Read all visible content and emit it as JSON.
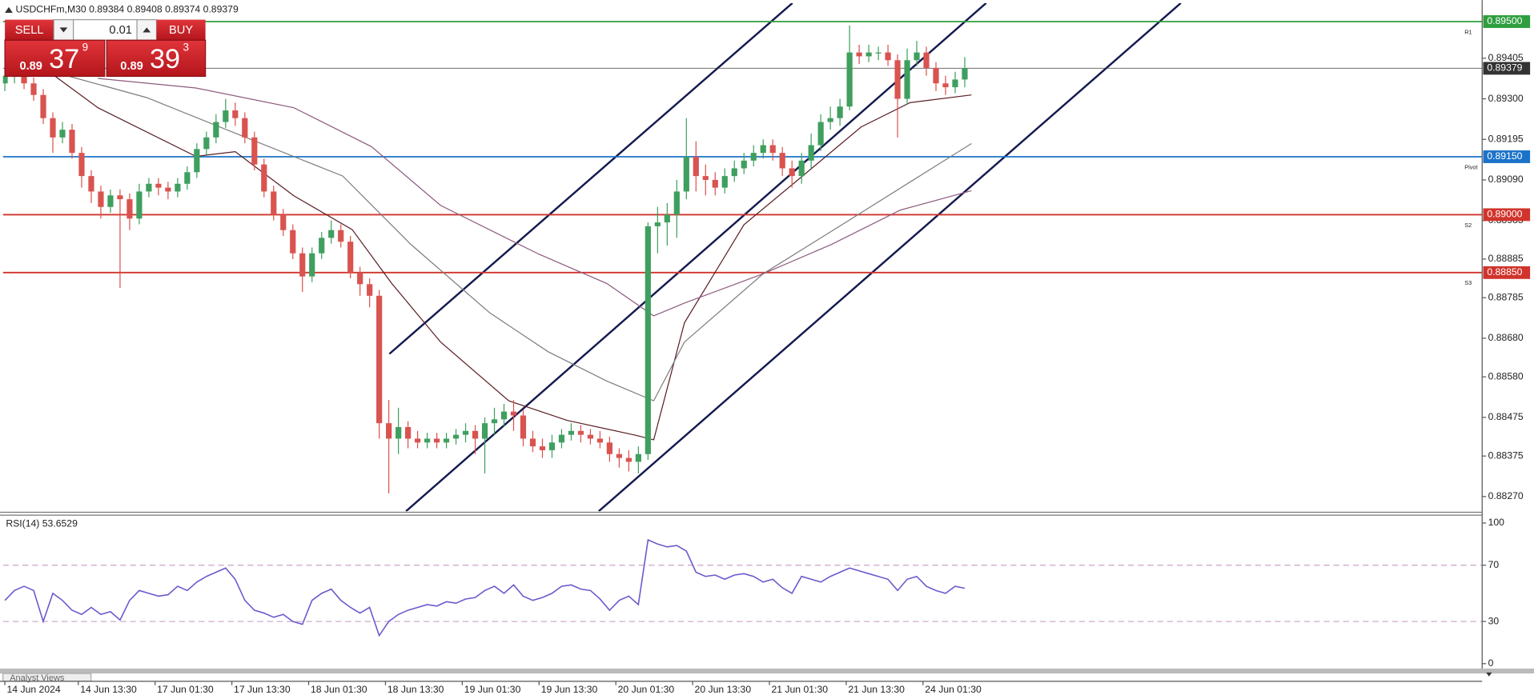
{
  "header": {
    "symbol": "USDCHFm,M30",
    "ohlc": [
      0.89384,
      0.89408,
      0.89374,
      0.89379
    ]
  },
  "trade_panel": {
    "sell": "SELL",
    "buy": "BUY",
    "volume": "0.01",
    "sell_price": {
      "big": "0.89",
      "main": "37",
      "frac": "9"
    },
    "buy_price": {
      "big": "0.89",
      "main": "39",
      "frac": "3"
    }
  },
  "footer": "Analyst Views",
  "chart_data": [
    {
      "type": "candlestick",
      "up_color": "#3f9f5f",
      "down_color": "#d9534f",
      "x": [
        0,
        1,
        2,
        3,
        4,
        5,
        6,
        7,
        8,
        9,
        10,
        11,
        12,
        13,
        14,
        15,
        16,
        17,
        18,
        19,
        20,
        21,
        22,
        23,
        24,
        25,
        26,
        27,
        28,
        29,
        30,
        31,
        32,
        33,
        34,
        35,
        36,
        37,
        38,
        39,
        40,
        41,
        42,
        43,
        44,
        45,
        46,
        47,
        48,
        49,
        50,
        51,
        52,
        53,
        54,
        55,
        56,
        57,
        58,
        59,
        60,
        61,
        62,
        63,
        64,
        65,
        66,
        67,
        68,
        69,
        70,
        71,
        72,
        73,
        74,
        75,
        76,
        77,
        78,
        79,
        80,
        81,
        82,
        83,
        84,
        85,
        86,
        87,
        88,
        89,
        90,
        91,
        92,
        93,
        94,
        95,
        96,
        97,
        98,
        99,
        100
      ],
      "open": [
        0.8934,
        0.8936,
        0.89372,
        0.8934,
        0.8931,
        0.8925,
        0.892,
        0.8922,
        0.8916,
        0.891,
        0.8906,
        0.8902,
        0.8905,
        0.8904,
        0.8899,
        0.8906,
        0.8908,
        0.8907,
        0.8906,
        0.8908,
        0.8911,
        0.8917,
        0.892,
        0.8924,
        0.8927,
        0.8925,
        0.892,
        0.8913,
        0.8906,
        0.89,
        0.8896,
        0.889,
        0.8884,
        0.889,
        0.8894,
        0.8896,
        0.8893,
        0.8885,
        0.8882,
        0.8879,
        0.8846,
        0.8842,
        0.8845,
        0.8842,
        0.8841,
        0.8842,
        0.8841,
        0.8842,
        0.8843,
        0.8844,
        0.8842,
        0.8846,
        0.8847,
        0.8849,
        0.8848,
        0.8842,
        0.884,
        0.8839,
        0.8841,
        0.8843,
        0.8844,
        0.8843,
        0.8842,
        0.8841,
        0.8838,
        0.8837,
        0.8836,
        0.8838,
        0.8897,
        0.8898,
        0.89,
        0.8906,
        0.8915,
        0.891,
        0.8909,
        0.8907,
        0.891,
        0.8912,
        0.8914,
        0.8916,
        0.8918,
        0.8916,
        0.8912,
        0.891,
        0.8914,
        0.8918,
        0.8924,
        0.8925,
        0.8928,
        0.8942,
        0.8941,
        0.8942,
        0.8942,
        0.894,
        0.893,
        0.894,
        0.8942,
        0.8938,
        0.8934,
        0.8933,
        0.8935
      ],
      "close": [
        0.8936,
        0.89372,
        0.8934,
        0.8931,
        0.8925,
        0.892,
        0.8922,
        0.8916,
        0.891,
        0.8906,
        0.8902,
        0.8905,
        0.8904,
        0.8899,
        0.8906,
        0.8908,
        0.8907,
        0.8906,
        0.8908,
        0.8911,
        0.8917,
        0.892,
        0.8924,
        0.8927,
        0.8925,
        0.892,
        0.8913,
        0.8906,
        0.89,
        0.8896,
        0.889,
        0.8884,
        0.889,
        0.8894,
        0.8896,
        0.8893,
        0.8885,
        0.8882,
        0.8879,
        0.8846,
        0.8842,
        0.8845,
        0.8842,
        0.8841,
        0.8842,
        0.8841,
        0.8842,
        0.8843,
        0.8844,
        0.8842,
        0.8846,
        0.8847,
        0.8849,
        0.8848,
        0.8842,
        0.884,
        0.8839,
        0.8841,
        0.8843,
        0.8844,
        0.8843,
        0.8842,
        0.8841,
        0.8838,
        0.8837,
        0.8836,
        0.8838,
        0.8897,
        0.8898,
        0.89,
        0.8906,
        0.8915,
        0.891,
        0.8909,
        0.8907,
        0.891,
        0.8912,
        0.8914,
        0.8916,
        0.8918,
        0.8916,
        0.8912,
        0.891,
        0.8914,
        0.8918,
        0.8924,
        0.8925,
        0.8928,
        0.8942,
        0.8941,
        0.8942,
        0.8942,
        0.894,
        0.893,
        0.894,
        0.8942,
        0.8938,
        0.8934,
        0.8933,
        0.8935,
        0.89379
      ],
      "high": [
        0.8938,
        0.8939,
        0.89385,
        0.89355,
        0.89325,
        0.89265,
        0.8924,
        0.89235,
        0.89175,
        0.89115,
        0.89075,
        0.89065,
        0.89065,
        0.89055,
        0.8908,
        0.89095,
        0.89095,
        0.89085,
        0.89095,
        0.89125,
        0.89185,
        0.89215,
        0.8926,
        0.893,
        0.8929,
        0.89265,
        0.89215,
        0.89145,
        0.89075,
        0.89015,
        0.88975,
        0.88915,
        0.88915,
        0.88955,
        0.88985,
        0.88975,
        0.88945,
        0.88865,
        0.88835,
        0.88805,
        0.8852,
        0.885,
        0.88465,
        0.8844,
        0.88435,
        0.88435,
        0.88435,
        0.88445,
        0.8846,
        0.88455,
        0.88475,
        0.885,
        0.8851,
        0.8852,
        0.88495,
        0.8844,
        0.8842,
        0.8843,
        0.88445,
        0.8846,
        0.88455,
        0.88445,
        0.8844,
        0.88425,
        0.88395,
        0.8839,
        0.884,
        0.8898,
        0.8902,
        0.8903,
        0.8909,
        0.8925,
        0.8919,
        0.8913,
        0.8911,
        0.8912,
        0.8914,
        0.8916,
        0.8918,
        0.89195,
        0.89195,
        0.89175,
        0.8914,
        0.8916,
        0.8921,
        0.8926,
        0.8928,
        0.893,
        0.8949,
        0.8944,
        0.8944,
        0.89435,
        0.8944,
        0.89415,
        0.8943,
        0.8945,
        0.89435,
        0.89395,
        0.8936,
        0.8937,
        0.89408
      ],
      "low": [
        0.8932,
        0.8934,
        0.89325,
        0.89295,
        0.89235,
        0.8916,
        0.89185,
        0.89145,
        0.8907,
        0.8903,
        0.8899,
        0.89005,
        0.8881,
        0.8896,
        0.88975,
        0.89045,
        0.8905,
        0.8904,
        0.89045,
        0.89065,
        0.89095,
        0.89155,
        0.89185,
        0.89225,
        0.8923,
        0.89185,
        0.89115,
        0.89045,
        0.88985,
        0.88945,
        0.88885,
        0.888,
        0.88825,
        0.88885,
        0.88925,
        0.88915,
        0.88835,
        0.8879,
        0.8876,
        0.8842,
        0.88278,
        0.8838,
        0.88395,
        0.88395,
        0.88395,
        0.88395,
        0.88395,
        0.88405,
        0.8841,
        0.8838,
        0.8833,
        0.8843,
        0.8845,
        0.8844,
        0.884,
        0.88385,
        0.8837,
        0.8837,
        0.88395,
        0.88415,
        0.8841,
        0.88405,
        0.88395,
        0.8836,
        0.88345,
        0.88335,
        0.8833,
        0.88365,
        0.889,
        0.8892,
        0.8894,
        0.8904,
        0.8906,
        0.8905,
        0.8905,
        0.89055,
        0.89085,
        0.89105,
        0.89125,
        0.89145,
        0.8914,
        0.891,
        0.8907,
        0.8908,
        0.8912,
        0.89165,
        0.8922,
        0.8923,
        0.8927,
        0.8939,
        0.89395,
        0.894,
        0.89385,
        0.892,
        0.89285,
        0.89385,
        0.8936,
        0.8932,
        0.8931,
        0.89315,
        0.8933
      ],
      "overlays": [
        {
          "color": "#5a1e22",
          "x": [
            0,
            9.7,
            19.9,
            24,
            30.1,
            36.2,
            40.3,
            45.4,
            52.5,
            58.6,
            65.7,
            67.6,
            70.8,
            77,
            83.1,
            89.2,
            94.3,
            100.7
          ],
          "values": [
            0.89454,
            0.89277,
            0.89151,
            0.89163,
            0.89049,
            0.88961,
            0.88822,
            0.8867,
            0.88518,
            0.88467,
            0.88429,
            0.88417,
            0.8872,
            0.88974,
            0.891,
            0.89227,
            0.8929,
            0.8931
          ]
        },
        {
          "color": "#7d7d7d",
          "x": [
            0,
            14.8,
            25,
            35.2,
            42.3,
            50.5,
            56.6,
            62.7,
            67.6,
            70.8,
            79,
            87.2,
            95.3,
            100.7
          ],
          "values": [
            0.89404,
            0.89303,
            0.89201,
            0.891,
            0.88923,
            0.88746,
            0.88645,
            0.88569,
            0.88518,
            0.8867,
            0.88847,
            0.88974,
            0.891,
            0.89184
          ]
        },
        {
          "color": "#8e5a7e",
          "x": [
            9.7,
            19.9,
            30.1,
            38.2,
            45.4,
            55.6,
            62.7,
            67.6,
            70.8,
            79,
            86.1,
            93.3,
            100.7
          ],
          "values": [
            0.89353,
            0.89328,
            0.89277,
            0.89176,
            0.89024,
            0.88898,
            0.88822,
            0.88738,
            0.88771,
            0.88847,
            0.88923,
            0.89012,
            0.89062
          ]
        }
      ],
      "levels": [
        {
          "value": 0.895,
          "label": "0.89500",
          "name": "R1",
          "color": "#2e9e3e"
        },
        {
          "value": 0.89379,
          "label": "0.89379",
          "color": "#333333"
        },
        {
          "value": 0.8915,
          "label": "0.89150",
          "name": "Pivot",
          "color": "#1a73c8"
        },
        {
          "value": 0.89,
          "label": "0.89000",
          "name": "S2",
          "color": "#d0342c"
        },
        {
          "value": 0.8885,
          "label": "0.88850",
          "name": "S3",
          "color": "#d0342c"
        }
      ],
      "xlim": [
        -0.2,
        153.9
      ],
      "xticks": [
        {
          "value": 0,
          "label": "14 Jun 2024"
        },
        {
          "value": 7.65,
          "label": "14 Jun 13:30"
        },
        {
          "value": 15.65,
          "label": "17 Jun 01:30"
        },
        {
          "value": 23.65,
          "label": "17 Jun 13:30"
        },
        {
          "value": 31.65,
          "label": "18 Jun 01:30"
        },
        {
          "value": 39.65,
          "label": "18 Jun 13:30"
        },
        {
          "value": 47.65,
          "label": "19 Jun 01:30"
        },
        {
          "value": 55.65,
          "label": "19 Jun 13:30"
        },
        {
          "value": 63.65,
          "label": "20 Jun 01:30"
        },
        {
          "value": 71.65,
          "label": "20 Jun 13:30"
        },
        {
          "value": 79.65,
          "label": "21 Jun 01:30"
        },
        {
          "value": 87.65,
          "label": "21 Jun 13:30"
        },
        {
          "value": 95.65,
          "label": "24 Jun 01:30"
        }
      ],
      "ylim": [
        0.88232,
        0.89548
      ],
      "yticks": [
        0.89405,
        {
          "value": 0.893,
          "label": "0.89300"
        },
        0.89195,
        {
          "value": 0.8909,
          "label": "0.89090"
        },
        0.88985,
        0.88885,
        0.88785,
        {
          "value": 0.8868,
          "label": "0.88680"
        },
        {
          "value": 0.8858,
          "label": "0.88580"
        },
        0.88475,
        0.88375,
        {
          "value": 0.8827,
          "label": "0.88270"
        }
      ],
      "grid": false
    },
    {
      "type": "line",
      "title": "RSI(14) 53.6529",
      "color": "#6a5acd",
      "x": [
        0,
        1,
        2,
        3,
        4,
        5,
        6,
        7,
        8,
        9,
        10,
        11,
        12,
        13,
        14,
        15,
        16,
        17,
        18,
        19,
        20,
        21,
        22,
        23,
        24,
        25,
        26,
        27,
        28,
        29,
        30,
        31,
        32,
        33,
        34,
        35,
        36,
        37,
        38,
        39,
        40,
        41,
        42,
        43,
        44,
        45,
        46,
        47,
        48,
        49,
        50,
        51,
        52,
        53,
        54,
        55,
        56,
        57,
        58,
        59,
        60,
        61,
        62,
        63,
        64,
        65,
        66,
        67,
        68,
        69,
        70,
        71,
        72,
        73,
        74,
        75,
        76,
        77,
        78,
        79,
        80,
        81,
        82,
        83,
        84,
        85,
        86,
        87,
        88,
        89,
        90,
        91,
        92,
        93,
        94,
        95,
        96,
        97,
        98,
        99,
        100
      ],
      "values": [
        45,
        52,
        55,
        52,
        30,
        50,
        45,
        38,
        35,
        40,
        35,
        37,
        31,
        45,
        52,
        50,
        48,
        49,
        55,
        52,
        58,
        62,
        65,
        68,
        60,
        45,
        38,
        36,
        33,
        35,
        30,
        28,
        45,
        50,
        53,
        45,
        40,
        36,
        40,
        20,
        30,
        35,
        38,
        40,
        42,
        41,
        44,
        43,
        46,
        47,
        52,
        55,
        50,
        56,
        48,
        45,
        47,
        50,
        55,
        56,
        53,
        52,
        46,
        38,
        45,
        48,
        42,
        88,
        85,
        83,
        84,
        80,
        65,
        62,
        63,
        60,
        63,
        64,
        62,
        58,
        60,
        54,
        50,
        62,
        60,
        58,
        62,
        65,
        68,
        66,
        64,
        62,
        60,
        52,
        60,
        62,
        55,
        52,
        50,
        55,
        53.65
      ],
      "ylim": [
        -4.2,
        105.6
      ],
      "yticks": [
        0,
        30,
        70,
        100
      ],
      "levels": [
        30,
        70
      ],
      "level_color": "#c8a2c8"
    }
  ]
}
